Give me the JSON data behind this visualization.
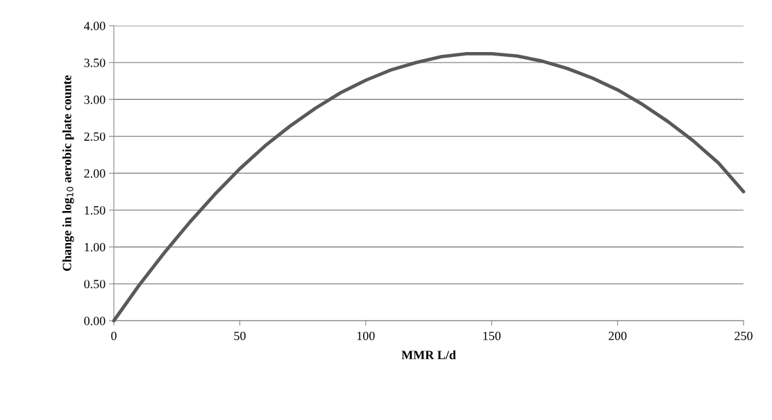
{
  "chart_data": {
    "type": "line",
    "xlabel": "MMR L/d",
    "ylabel": "Change in log$_{10}$ aerobic plate counte",
    "x": [
      0,
      10,
      20,
      30,
      40,
      50,
      60,
      70,
      80,
      90,
      100,
      110,
      120,
      130,
      140,
      146,
      150,
      160,
      170,
      180,
      190,
      200,
      210,
      220,
      230,
      240,
      250
    ],
    "series": [
      {
        "color": "#595959",
        "values": [
          0,
          0.48,
          0.92,
          1.33,
          1.71,
          2.06,
          2.37,
          2.64,
          2.88,
          3.09,
          3.26,
          3.4,
          3.5,
          3.58,
          3.62,
          3.62,
          3.62,
          3.59,
          3.52,
          3.42,
          3.29,
          3.13,
          2.93,
          2.7,
          2.44,
          2.14,
          1.75
        ]
      }
    ],
    "xlim": [
      0,
      250
    ],
    "xticks": [
      0,
      50,
      100,
      150,
      200,
      250
    ],
    "ylim": [
      0,
      4
    ],
    "yticks": [
      {
        "value": 0,
        "label": "0.00"
      },
      {
        "value": 0.5,
        "label": "0.50"
      },
      {
        "value": 1,
        "label": "1.00"
      },
      {
        "value": 1.5,
        "label": "1.50"
      },
      {
        "value": 2,
        "label": "2.00"
      },
      {
        "value": 2.5,
        "label": "2.50"
      },
      {
        "value": 3,
        "label": "3.00"
      },
      {
        "value": 3.5,
        "label": "3.50"
      },
      {
        "value": 4,
        "label": "4.00"
      }
    ],
    "grid": "y",
    "legend": false,
    "marker": "none",
    "line_style": "solid"
  }
}
